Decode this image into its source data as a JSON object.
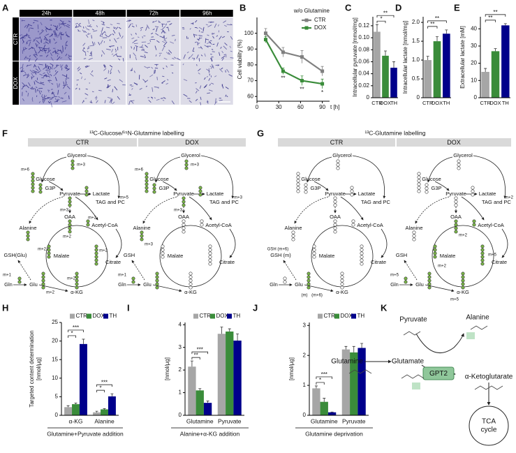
{
  "panel_labels": [
    "A",
    "B",
    "C",
    "D",
    "E",
    "F",
    "G",
    "H",
    "I",
    "J",
    "K"
  ],
  "panel_a": {
    "columns": [
      "24h",
      "48h",
      "72h",
      "96h"
    ],
    "rows": [
      "CTR",
      "DOX"
    ]
  },
  "chart_data": [
    {
      "type": "line",
      "note": "w/o Glutamine",
      "ylabel": "Cell viability (%)",
      "xlabel": "t [h]",
      "x": [
        12,
        36,
        62,
        90
      ],
      "series": [
        {
          "name": "CTR",
          "color": "#808080",
          "values": [
            100,
            88,
            85,
            76
          ],
          "errors": [
            3,
            3,
            4,
            3
          ]
        },
        {
          "name": "DOX",
          "color": "#3a8c3a",
          "values": [
            96,
            76,
            70,
            68
          ],
          "errors": [
            2,
            2,
            3,
            3
          ]
        }
      ],
      "xlim": [
        0,
        100
      ],
      "xticks": [
        0,
        30,
        60,
        90
      ],
      "ylim": [
        57,
        110
      ],
      "yticks": [
        60,
        70,
        80,
        90,
        100
      ],
      "annotations": [
        "**",
        "**",
        "*"
      ]
    },
    {
      "type": "bar",
      "ylabel": "Intracellular pyruvate [mmol/mg]",
      "categories": [
        "CTR",
        "DOX",
        "TH"
      ],
      "values": [
        0.11,
        0.07,
        0.05
      ],
      "errors": [
        0.012,
        0.008,
        0.01
      ],
      "colors": [
        "#a6a6a6",
        "#3a8c3a",
        "#00008b"
      ],
      "ylim": [
        0,
        0.135
      ],
      "yticks": [
        0,
        0.02,
        0.04,
        0.06,
        0.08,
        {
          "value": 0.1,
          "label": "0.10"
        },
        0.12
      ],
      "annotations": [
        "*",
        "**"
      ]
    },
    {
      "type": "bar",
      "ylabel": "Intracellular lactate [nmol/mg]",
      "categories": [
        "CTR",
        "DOX",
        "TH"
      ],
      "values": [
        1.0,
        1.5,
        1.7
      ],
      "errors": [
        0.1,
        0.12,
        0.1
      ],
      "colors": [
        "#a6a6a6",
        "#3a8c3a",
        "#00008b"
      ],
      "ylim": [
        0,
        2.15
      ],
      "yticks": [
        0,
        0.5,
        {
          "value": 1,
          "label": "1.0"
        },
        1.5,
        {
          "value": 2,
          "label": "2.0"
        }
      ],
      "annotations": [
        "**",
        "**"
      ]
    },
    {
      "type": "bar",
      "ylabel": "Extracellular lactate [mM]",
      "categories": [
        "CTR",
        "DOX",
        "TH"
      ],
      "values": [
        15,
        27,
        42
      ],
      "errors": [
        2,
        1.5,
        1
      ],
      "colors": [
        "#a6a6a6",
        "#3a8c3a",
        "#00008b"
      ],
      "ylim": [
        0,
        47
      ],
      "yticks": [
        0,
        10,
        20,
        30,
        40
      ],
      "annotations": [
        "**",
        "**"
      ]
    },
    {
      "type": "bar",
      "ylabel": "Targeted content determination",
      "yunit": "[nmol/µg]",
      "xlabel": "Glutamine+Pyruvate addition",
      "categories": [
        "α-KG",
        "Alanine"
      ],
      "series": [
        {
          "name": "CTR",
          "color": "#a6a6a6",
          "values": [
            2.2,
            0.8
          ],
          "errors": [
            0.4,
            0.3
          ]
        },
        {
          "name": "DOX",
          "color": "#3a8c3a",
          "values": [
            3.0,
            1.6
          ],
          "errors": [
            0.3,
            0.2
          ]
        },
        {
          "name": "TH",
          "color": "#00008b",
          "values": [
            19.2,
            5.1
          ],
          "errors": [
            1.3,
            0.7
          ]
        }
      ],
      "ylim": [
        0,
        25
      ],
      "yticks": [
        0,
        5,
        10,
        15,
        20,
        25
      ],
      "legend": true,
      "annotations": [
        "*",
        "***",
        "*",
        "***"
      ]
    },
    {
      "type": "bar",
      "ylabel": "[nmol/µg]",
      "xlabel": "Alanine+α-KG addition",
      "categories": [
        "Glutamine",
        "Pyruvate"
      ],
      "series": [
        {
          "name": "CTR",
          "color": "#a6a6a6",
          "values": [
            2.15,
            3.6
          ],
          "errors": [
            0.25,
            0.3
          ]
        },
        {
          "name": "DOX",
          "color": "#3a8c3a",
          "values": [
            1.1,
            3.7
          ],
          "errors": [
            0.08,
            0.12
          ]
        },
        {
          "name": "TH",
          "color": "#00008b",
          "values": [
            0.55,
            3.3
          ],
          "errors": [
            0.08,
            0.3
          ]
        }
      ],
      "ylim": [
        0,
        4.1
      ],
      "yticks": [
        0,
        1,
        2,
        3,
        4
      ],
      "legend": true,
      "annotations": [
        "**",
        "***"
      ]
    },
    {
      "type": "bar",
      "ylabel": "[nmol/µg]",
      "xlabel": "Glutamine deprivation",
      "categories": [
        "Glutamine",
        "Pyruvate"
      ],
      "series": [
        {
          "name": "CTR",
          "color": "#a6a6a6",
          "values": [
            0.9,
            2.2
          ],
          "errors": [
            0.08,
            0.1
          ]
        },
        {
          "name": "DOX",
          "color": "#3a8c3a",
          "values": [
            0.45,
            2.1
          ],
          "errors": [
            0.12,
            0.2
          ]
        },
        {
          "name": "TH",
          "color": "#00008b",
          "values": [
            0.1,
            2.25
          ],
          "errors": [
            0.01,
            0.15
          ]
        }
      ],
      "ylim": [
        0,
        3.1
      ],
      "yticks": [
        0,
        1,
        2,
        3
      ],
      "legend": true,
      "annotations": [
        "*",
        "***"
      ]
    }
  ],
  "panel_f": {
    "title": "¹³C-Glucose/¹⁵N-Glutamine labelling",
    "columns": [
      "CTR",
      "DOX"
    ],
    "ctr": {
      "nodes": [
        "Glycerol",
        "Glucose",
        "G3P",
        "Pyruvate",
        "Lactate",
        "TAG and PC",
        "Alanine",
        "OAA",
        "Acetyl-CoA",
        "Malate",
        "Citrate",
        "GSH(Glu)",
        "Gln",
        "Glu",
        "α-KG"
      ],
      "isotopes": [
        "m+6",
        "m+3",
        "m+3",
        "m+5",
        "m+2",
        "m+2",
        "m+2",
        "m+2",
        "m+2",
        "m+1",
        "m+2"
      ]
    },
    "dox": {
      "nodes": [
        "Glycerol",
        "Glucose",
        "G3P",
        "Pyruvate",
        "Lactate",
        "TAG and PC",
        "Alanine",
        "OAA",
        "Acetyl-CoA",
        "Malate",
        "Citrate",
        "GSH",
        "Gln",
        "Glu",
        "α-KG"
      ],
      "isotopes": [
        "m+6",
        "m+3",
        "m+3",
        "m+3",
        "m+3",
        "m+1"
      ]
    }
  },
  "panel_g": {
    "title": "¹³C-Glutamine labelling",
    "columns": [
      "CTR",
      "DOX"
    ],
    "ctr": {
      "nodes": [
        "Glycerol",
        "Glucose",
        "G3P",
        "Pyruvate",
        "Lactate",
        "TAG and PC",
        "Alanine",
        "OAA",
        "Acetyl-CoA",
        "Malate",
        "Citrate",
        "GSH (m)",
        "Gln",
        "Glu",
        "α-KG"
      ],
      "isotopes": [
        "GSH (m+6)",
        "(m)",
        "(m+6)"
      ]
    },
    "dox": {
      "nodes": [
        "Glycerol",
        "Glucose",
        "G3P",
        "Pyruvate",
        "Lactate",
        "TAG and PC",
        "Alanine",
        "OAA",
        "Acetyl-CoA",
        "Malate",
        "Citrate",
        "GSH",
        "Gln",
        "Glu",
        "α-KG"
      ],
      "isotopes": [
        "m+2",
        "m+2",
        "m+2",
        "m+5",
        "m+5",
        "m+5"
      ]
    }
  },
  "panel_k": {
    "pyruvate": "Pyruvate",
    "alanine": "Alanine",
    "glutamine": "Glutamine",
    "glutamate": "Glutamate",
    "enzyme": "GPT2",
    "product": "α-Ketoglutarate",
    "cycle": [
      "TCA",
      "cycle"
    ]
  }
}
